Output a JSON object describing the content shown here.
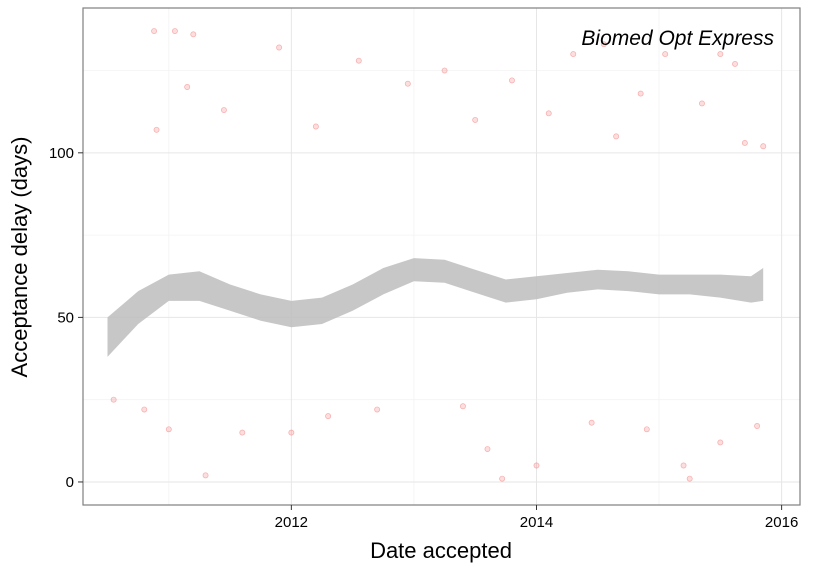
{
  "chart_data": {
    "type": "scatter",
    "title": "",
    "annotation": "Biomed Opt Express",
    "xlabel": "Date accepted",
    "ylabel": "Acceptance delay (days)",
    "xlim": [
      2010.3,
      2016.15
    ],
    "ylim": [
      -7,
      144
    ],
    "x_ticks": [
      2012,
      2014,
      2016
    ],
    "x_tick_labels": [
      "2012",
      "2014",
      "2016"
    ],
    "y_ticks": [
      0,
      50,
      100
    ],
    "y_tick_labels": [
      "0",
      "50",
      "100"
    ],
    "minor_x_ticks": [
      2011,
      2013,
      2015
    ],
    "minor_y_ticks": [
      25,
      75,
      125
    ],
    "grid": true,
    "point_color": "#f25c5c",
    "smooth_fill_color": "#bdbdbd",
    "smooth": {
      "x": [
        2010.5,
        2010.75,
        2011.0,
        2011.25,
        2011.5,
        2011.75,
        2012.0,
        2012.25,
        2012.5,
        2012.75,
        2013.0,
        2013.25,
        2013.5,
        2013.75,
        2014.0,
        2014.25,
        2014.5,
        2014.75,
        2015.0,
        2015.25,
        2015.5,
        2015.75,
        2015.85
      ],
      "y": [
        44,
        53,
        59,
        59.5,
        56,
        53,
        51,
        52,
        56,
        61,
        64.5,
        64,
        61,
        58,
        59,
        60.5,
        61.5,
        61,
        60,
        60,
        59.5,
        58.5,
        60
      ],
      "upper": [
        50,
        58,
        63,
        64,
        60,
        57,
        55,
        56,
        60,
        65,
        68,
        67.5,
        64.5,
        61.5,
        62.5,
        63.5,
        64.5,
        64,
        63,
        63,
        63,
        62.5,
        65
      ],
      "lower": [
        38,
        48,
        55,
        55,
        52,
        49,
        47,
        48,
        52,
        57,
        61,
        60.5,
        57.5,
        54.5,
        55.5,
        57.5,
        58.5,
        58,
        57,
        57,
        56,
        54.5,
        55
      ]
    },
    "points": [
      {
        "x": 2010.88,
        "y": 137
      },
      {
        "x": 2011.05,
        "y": 137
      },
      {
        "x": 2011.2,
        "y": 136
      },
      {
        "x": 2011.9,
        "y": 132
      },
      {
        "x": 2012.55,
        "y": 128
      },
      {
        "x": 2013.25,
        "y": 125
      },
      {
        "x": 2014.3,
        "y": 130
      },
      {
        "x": 2014.55,
        "y": 133
      },
      {
        "x": 2015.05,
        "y": 130
      },
      {
        "x": 2015.5,
        "y": 130
      },
      {
        "x": 2015.62,
        "y": 127
      },
      {
        "x": 2011.15,
        "y": 120
      },
      {
        "x": 2012.95,
        "y": 121
      },
      {
        "x": 2013.8,
        "y": 122
      },
      {
        "x": 2014.85,
        "y": 118
      },
      {
        "x": 2015.35,
        "y": 115
      },
      {
        "x": 2010.9,
        "y": 107
      },
      {
        "x": 2011.45,
        "y": 113
      },
      {
        "x": 2012.2,
        "y": 108
      },
      {
        "x": 2013.5,
        "y": 110
      },
      {
        "x": 2014.1,
        "y": 112
      },
      {
        "x": 2014.65,
        "y": 105
      },
      {
        "x": 2015.7,
        "y": 103
      },
      {
        "x": 2015.85,
        "y": 102
      },
      {
        "x": 2010.55,
        "y": 25
      },
      {
        "x": 2010.8,
        "y": 22
      },
      {
        "x": 2011.0,
        "y": 16
      },
      {
        "x": 2011.3,
        "y": 2
      },
      {
        "x": 2011.6,
        "y": 15
      },
      {
        "x": 2012.0,
        "y": 15
      },
      {
        "x": 2012.3,
        "y": 20
      },
      {
        "x": 2012.7,
        "y": 22
      },
      {
        "x": 2013.4,
        "y": 23
      },
      {
        "x": 2013.6,
        "y": 10
      },
      {
        "x": 2013.72,
        "y": 1
      },
      {
        "x": 2014.0,
        "y": 5
      },
      {
        "x": 2014.45,
        "y": 18
      },
      {
        "x": 2014.9,
        "y": 16
      },
      {
        "x": 2015.2,
        "y": 5
      },
      {
        "x": 2015.25,
        "y": 1
      },
      {
        "x": 2015.5,
        "y": 12
      },
      {
        "x": 2015.8,
        "y": 17
      }
    ]
  }
}
